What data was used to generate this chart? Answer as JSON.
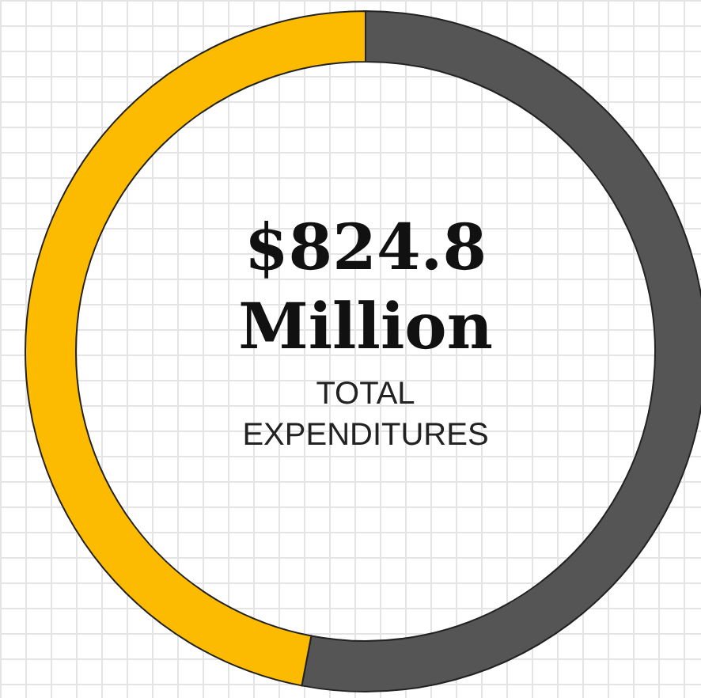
{
  "chart_data": {
    "type": "donut",
    "title": "$824.8 Million",
    "subtitle": "TOTAL EXPENDITURES",
    "categories": [
      null,
      null
    ],
    "values": [
      53,
      47
    ],
    "colors": [
      "#555555",
      "#fdbb00"
    ],
    "legend": false
  }
}
